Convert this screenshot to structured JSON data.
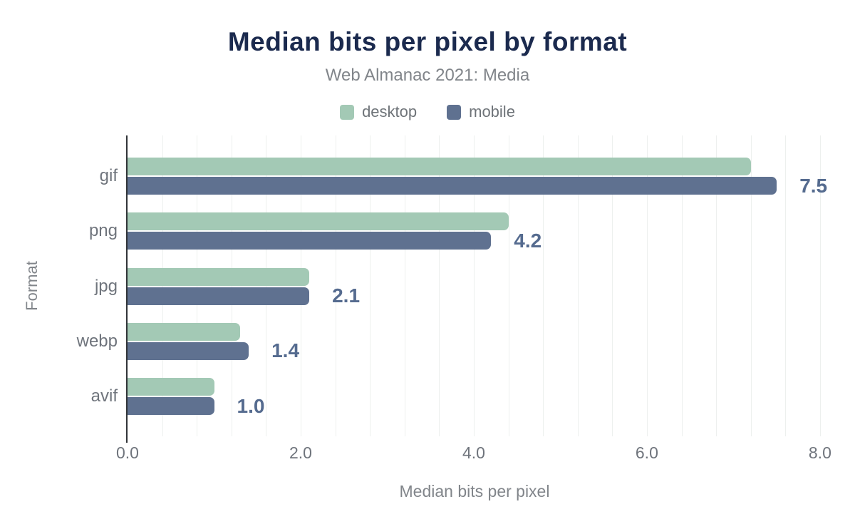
{
  "chart_data": {
    "type": "bar",
    "orientation": "horizontal",
    "title": "Median bits per pixel by format",
    "subtitle": "Web Almanac 2021: Media",
    "xlabel": "Median bits per pixel",
    "ylabel": "Format",
    "categories": [
      "gif",
      "png",
      "jpg",
      "webp",
      "avif"
    ],
    "series": [
      {
        "name": "desktop",
        "color": "#a3c9b5",
        "values": [
          7.2,
          4.4,
          2.1,
          1.3,
          1.0
        ]
      },
      {
        "name": "mobile",
        "color": "#5f7190",
        "values": [
          7.5,
          4.2,
          2.1,
          1.4,
          1.0
        ]
      }
    ],
    "data_labels": {
      "series": "mobile",
      "values": [
        "7.5",
        "4.2",
        "2.1",
        "1.4",
        "1.0"
      ],
      "color": "#556b8f"
    },
    "x_ticks": {
      "labels": [
        "0.0",
        "2.0",
        "4.0",
        "6.0",
        "8.0"
      ],
      "values": [
        0,
        2,
        4,
        6,
        8
      ]
    },
    "xlim": [
      0,
      8.05
    ],
    "minor_grid_step": 0.4,
    "grid": true,
    "legend_position": "top",
    "colors": {
      "title": "#1b2a4e",
      "subtitle": "#81858a",
      "axis_text": "#6f747c",
      "grid": "#edf0ee",
      "axis_line": "#313438"
    }
  }
}
